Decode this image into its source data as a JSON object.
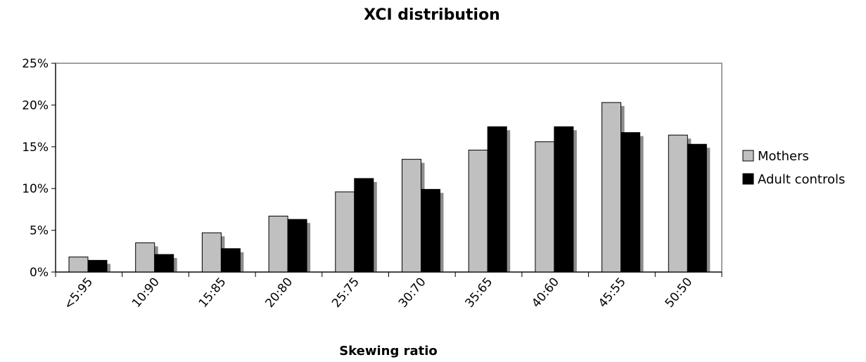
{
  "chart_data": {
    "type": "bar",
    "title": "XCI distribution",
    "xlabel": "Skewing ratio",
    "ylabel": "",
    "categories": [
      "<5:95",
      "10:90",
      "15:85",
      "20:80",
      "25:75",
      "30:70",
      "35:65",
      "40:60",
      "45:55",
      "50:50"
    ],
    "series": [
      {
        "name": "Mothers",
        "color": "#c0c0c0",
        "values": [
          1.8,
          3.5,
          4.7,
          6.7,
          9.6,
          13.5,
          14.6,
          15.6,
          20.3,
          16.4
        ]
      },
      {
        "name": "Adult controls",
        "color": "#000000",
        "values": [
          1.4,
          2.1,
          2.8,
          6.3,
          11.2,
          9.9,
          17.4,
          17.4,
          16.7,
          15.3
        ]
      }
    ],
    "ylim": [
      0,
      25
    ],
    "yticks": [
      "0%",
      "5%",
      "10%",
      "15%",
      "20%",
      "25%"
    ],
    "legend_position": "right",
    "grid": false
  }
}
